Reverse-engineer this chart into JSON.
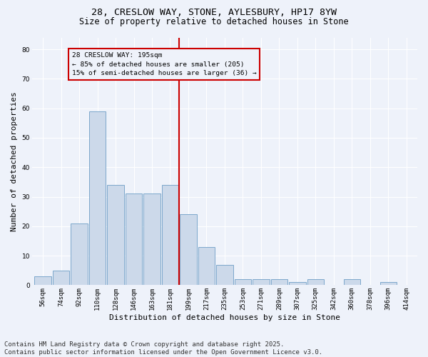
{
  "title_line1": "28, CRESLOW WAY, STONE, AYLESBURY, HP17 8YW",
  "title_line2": "Size of property relative to detached houses in Stone",
  "xlabel": "Distribution of detached houses by size in Stone",
  "ylabel": "Number of detached properties",
  "bar_labels": [
    "56sqm",
    "74sqm",
    "92sqm",
    "110sqm",
    "128sqm",
    "146sqm",
    "163sqm",
    "181sqm",
    "199sqm",
    "217sqm",
    "235sqm",
    "253sqm",
    "271sqm",
    "289sqm",
    "307sqm",
    "325sqm",
    "342sqm",
    "360sqm",
    "378sqm",
    "396sqm",
    "414sqm"
  ],
  "bar_values": [
    3,
    5,
    21,
    59,
    34,
    31,
    31,
    34,
    24,
    13,
    7,
    2,
    2,
    2,
    1,
    2,
    0,
    2,
    0,
    1,
    0
  ],
  "bar_color": "#ccd9ea",
  "bar_edge_color": "#7ba7cb",
  "background_color": "#eef2fa",
  "grid_color": "#ffffff",
  "vline_index": 8,
  "vline_color": "#cc0000",
  "vline_label_line1": "28 CRESLOW WAY: 195sqm",
  "vline_label_line2": "← 85% of detached houses are smaller (205)",
  "vline_label_line3": "15% of semi-detached houses are larger (36) →",
  "annotation_box_color": "#cc0000",
  "ylim": [
    0,
    84
  ],
  "yticks": [
    0,
    10,
    20,
    30,
    40,
    50,
    60,
    70,
    80
  ],
  "footnote": "Contains HM Land Registry data © Crown copyright and database right 2025.\nContains public sector information licensed under the Open Government Licence v3.0.",
  "footnote_fontsize": 6.5,
  "title1_fontsize": 9.5,
  "title2_fontsize": 8.5,
  "ylabel_fontsize": 8,
  "xlabel_fontsize": 8,
  "tick_fontsize": 6.5
}
